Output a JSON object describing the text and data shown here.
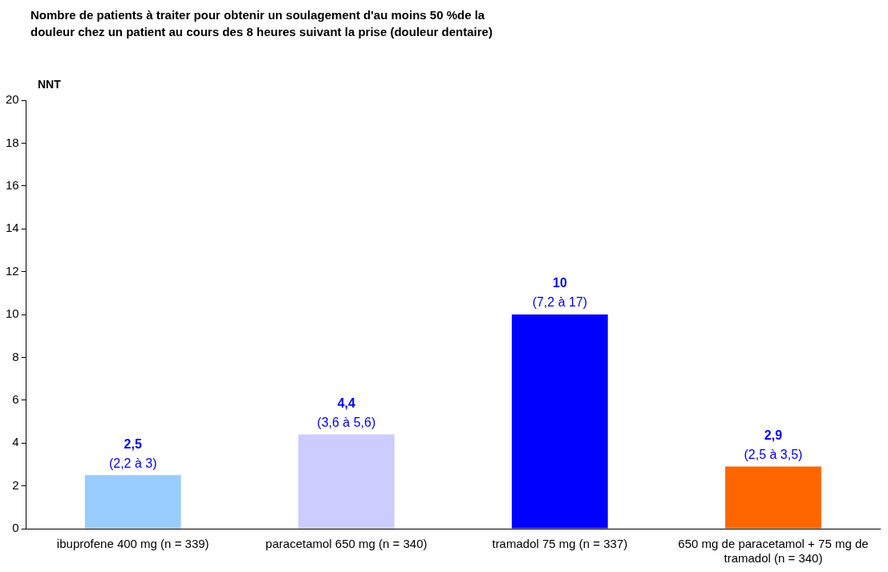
{
  "chart_data": {
    "type": "bar",
    "title": "Nombre de patients à traiter pour obtenir un soulagement d'au moins 50 %de la douleur chez un patient au cours des 8 heures suivant la prise (douleur dentaire)",
    "ylabel": "NNT",
    "categories": [
      "ibuprofene 400 mg (n = 339)",
      "paracetamol 650 mg (n = 340)",
      "tramadol 75 mg (n = 337)",
      "650 mg de paracetamol + 75 mg de tramadol (n = 340)"
    ],
    "values": [
      2.5,
      4.4,
      10,
      2.9
    ],
    "colors": [
      "#99ccff",
      "#ccccff",
      "#0000ff",
      "#ff6600"
    ],
    "value_labels": [
      "2,5",
      "4,4",
      "10",
      "2,9"
    ],
    "annotations": [
      {
        "text": "(2,2 à 3)",
        "x": "ibuprofene 400 mg (n = 339)",
        "y": 2.5
      },
      {
        "text": "(3,6 à 5,6)",
        "x": "paracetamol 650 mg (n = 340)",
        "y": 4.4
      },
      {
        "text": "(7,2 à 17)",
        "x": "tramadol 75 mg (n = 337)",
        "y": 10
      },
      {
        "text": "(2,5 à 3,5)",
        "x": "650 mg de paracetamol + 75 mg de tramadol (n = 340)",
        "y": 2.9
      }
    ],
    "ylim": [
      0,
      20
    ],
    "yticks": [
      0,
      2,
      4,
      6,
      8,
      10,
      12,
      14,
      16,
      18,
      20
    ],
    "grid": false,
    "legend": false
  }
}
